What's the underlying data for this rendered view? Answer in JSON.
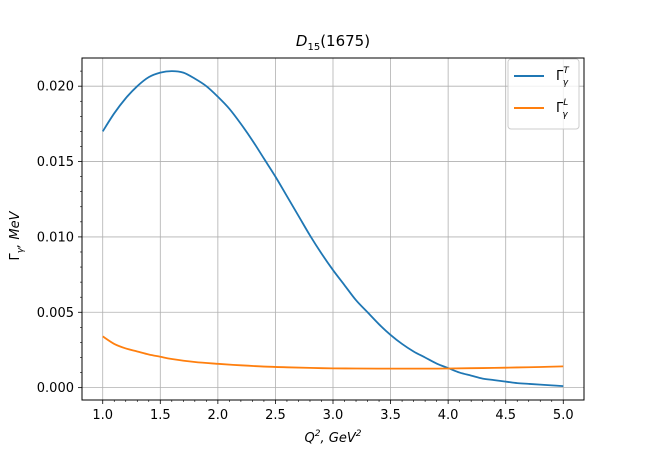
{
  "chart_data": {
    "type": "line",
    "title": {
      "main": "D",
      "sub": "15",
      "rest": "(1675)"
    },
    "xlabel": {
      "base": "Q",
      "sup": "2",
      "sep": ", GeV",
      "sup2": "2"
    },
    "ylabel": {
      "main": "Γ",
      "sub": "γ",
      "rest": ", MeV"
    },
    "xlim": [
      0.82,
      5.18
    ],
    "ylim": [
      -0.00082,
      0.02187
    ],
    "xticks": [
      "1.0",
      "1.5",
      "2.0",
      "2.5",
      "3.0",
      "3.5",
      "4.0",
      "4.5",
      "5.0"
    ],
    "yticks": [
      "0.000",
      "0.005",
      "0.010",
      "0.015",
      "0.020"
    ],
    "grid": true,
    "legend_position": "top-right",
    "series": [
      {
        "name": {
          "main": "Γ",
          "sub": "γ",
          "sup": "T"
        },
        "color": "#1f77b4",
        "x": [
          1.0,
          1.1,
          1.2,
          1.3,
          1.4,
          1.5,
          1.6,
          1.7,
          1.8,
          1.9,
          2.0,
          2.1,
          2.2,
          2.3,
          2.4,
          2.5,
          2.6,
          2.7,
          2.8,
          2.9,
          3.0,
          3.1,
          3.2,
          3.3,
          3.4,
          3.5,
          3.6,
          3.7,
          3.8,
          3.9,
          4.0,
          4.1,
          4.2,
          4.3,
          4.4,
          4.5,
          4.6,
          4.7,
          4.8,
          4.9,
          5.0
        ],
        "y": [
          0.017,
          0.0182,
          0.0192,
          0.02,
          0.0206,
          0.0209,
          0.021,
          0.0209,
          0.0205,
          0.02,
          0.0193,
          0.0185,
          0.0175,
          0.0164,
          0.0152,
          0.014,
          0.0127,
          0.0114,
          0.0101,
          0.0089,
          0.0078,
          0.0068,
          0.0058,
          0.005,
          0.0042,
          0.0035,
          0.0029,
          0.0024,
          0.002,
          0.0016,
          0.0013,
          0.001,
          0.0008,
          0.0006,
          0.0005,
          0.0004,
          0.0003,
          0.00025,
          0.0002,
          0.00015,
          0.0001
        ]
      },
      {
        "name": {
          "main": "Γ",
          "sub": "γ",
          "sup": "L"
        },
        "color": "#ff7f0e",
        "x": [
          1.0,
          1.1,
          1.2,
          1.3,
          1.4,
          1.5,
          1.6,
          1.8,
          2.0,
          2.2,
          2.4,
          2.6,
          2.8,
          3.0,
          3.2,
          3.4,
          3.6,
          3.8,
          4.0,
          4.2,
          4.4,
          4.6,
          4.8,
          5.0
        ],
        "y": [
          0.0034,
          0.0029,
          0.0026,
          0.0024,
          0.0022,
          0.00205,
          0.0019,
          0.0017,
          0.00158,
          0.00148,
          0.0014,
          0.00135,
          0.00131,
          0.00128,
          0.00127,
          0.00126,
          0.00126,
          0.00126,
          0.00127,
          0.00129,
          0.00131,
          0.00134,
          0.00137,
          0.00141
        ]
      }
    ]
  }
}
